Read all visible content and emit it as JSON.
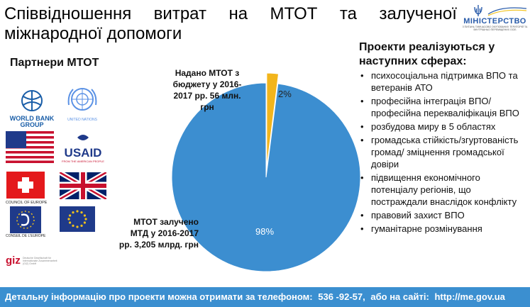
{
  "title": {
    "line1": [
      "Співвідношення",
      "витрат",
      "на",
      "МТОТ",
      "та",
      "залученої"
    ],
    "line2": "міжнародної допомоги"
  },
  "logo": {
    "name": "МІНІСТЕРСТВО",
    "subtitle": "З ПИТАНЬ ТИМЧАСОВО ОКУПОВАНИХ ТЕРИТОРІЙ ТА ВНУТРІШНЬО ПЕРЕМІЩЕНИХ ОСІБ",
    "icon": "trident-icon"
  },
  "partners": {
    "title": "Партнери МТОТ",
    "logos": [
      {
        "name": "world-bank",
        "caption": "WORLD BANK GROUP"
      },
      {
        "name": "un",
        "caption": "UNITED NATIONS"
      },
      {
        "name": "usa-flag"
      },
      {
        "name": "usaid",
        "caption": "USAID",
        "subcaption": "FROM THE AMERICAN PEOPLE"
      },
      {
        "name": "swiss-flag"
      },
      {
        "name": "uk-flag"
      },
      {
        "name": "council-of-europe",
        "caption": "COUNCIL OF EUROPE",
        "subcaption": "CONSEIL DE L'EUROPE"
      },
      {
        "name": "eu-flag"
      },
      {
        "name": "giz",
        "caption": "giz",
        "subcaption": "Deutsche Gesellschaft für Internationale Zusammenarbeit (GIZ) GmbH"
      }
    ]
  },
  "chart_data": {
    "type": "pie",
    "values": [
      2,
      98
    ],
    "labels": [
      "2%",
      "98%"
    ],
    "slices": [
      {
        "name": "Надано МТОТ з бюджету у 2016-2017 рр. 56 млн. грн",
        "value": 2,
        "color": "#f2b51c"
      },
      {
        "name": "МТОТ залучено МТД у 2016-2017 рр. 3,205 млрд. грн",
        "value": 98,
        "color": "#3c8ed0"
      }
    ],
    "budget_label": [
      "Надано МТОТ з",
      "бюджету у 2016-",
      "2017 рр. 56 млн.",
      "грн"
    ],
    "mtd_label": [
      "МТОТ залучено",
      "МТД у 2016-2017",
      "рр. 3,205 млрд. грн"
    ]
  },
  "projects": {
    "title": "Проекти реалізуються у наступних сферах:",
    "items": [
      "психосоціальна підтримка ВПО та ветеранів АТО",
      "професійна інтеграція ВПО/ професійна перекваліфікація ВПО",
      "розбудова миру в 5 областях",
      "громадська стійкість/згуртованість громад/ зміцнення громадської довіри",
      "підвищення економічного потенціалу регіонів, що постраждали внаслідок конфлікту",
      "правовий захист ВПО",
      "гуманітарне розмінування"
    ]
  },
  "footer": {
    "text": "Детальну інформацію про проекти можна отримати за телефоном:",
    "phone": "536 -92-57,",
    "mid": "або на сайті:",
    "site": "http://me.gov.ua"
  },
  "colors": {
    "accent": "#3b8fd0",
    "pie_blue": "#3c8ed0",
    "pie_yellow": "#f2b51c"
  }
}
